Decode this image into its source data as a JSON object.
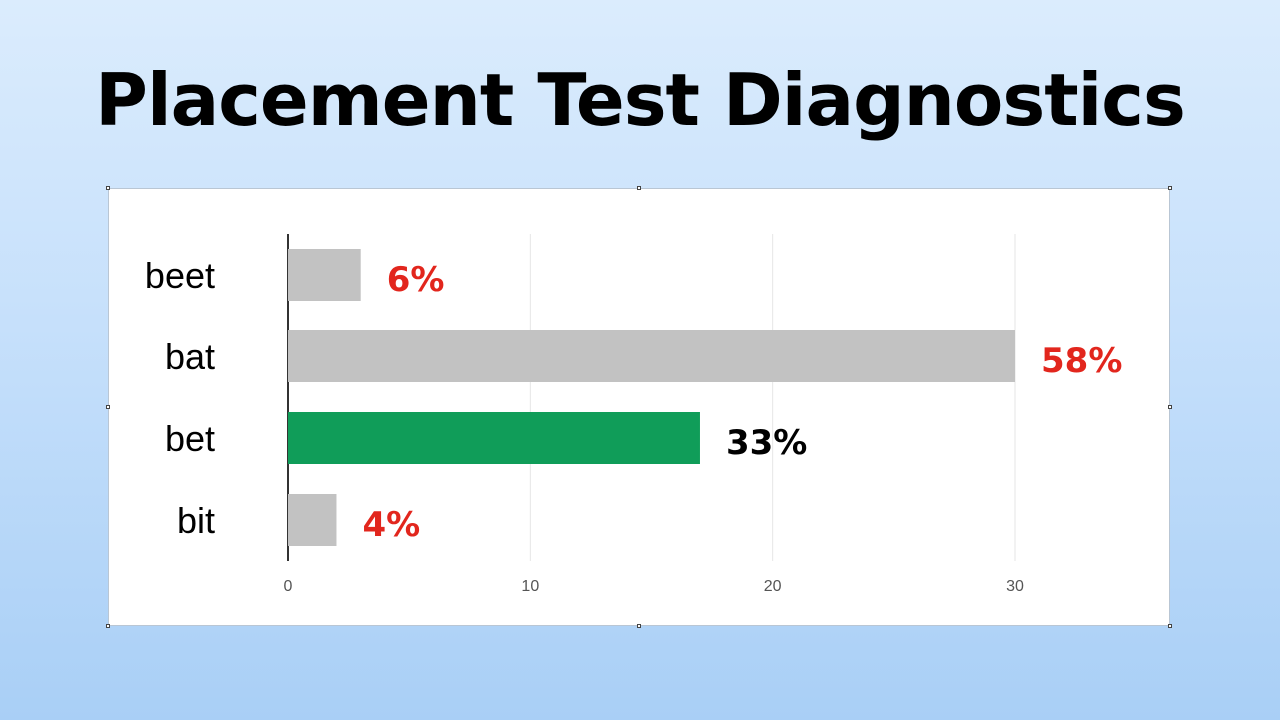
{
  "page": {
    "title": "Placement Test Diagnostics"
  },
  "colors": {
    "bar_default": "#c2c2c2",
    "bar_highlight": "#109d59",
    "label_red": "#e2261d",
    "label_black": "#000000",
    "grid": "#e6e6e6",
    "axis": "#333333"
  },
  "chart_data": {
    "type": "bar",
    "orientation": "horizontal",
    "categories": [
      "beet",
      "bat",
      "bet",
      "bit"
    ],
    "values": [
      3,
      30,
      17,
      2
    ],
    "data_labels": [
      "6%",
      "58%",
      "33%",
      "4%"
    ],
    "highlight_index": 2,
    "xlim": [
      0,
      30
    ],
    "xticks": [
      "0",
      "10",
      "20",
      "30"
    ],
    "xlabel": "",
    "ylabel": "",
    "grid": true,
    "legend": "none"
  }
}
